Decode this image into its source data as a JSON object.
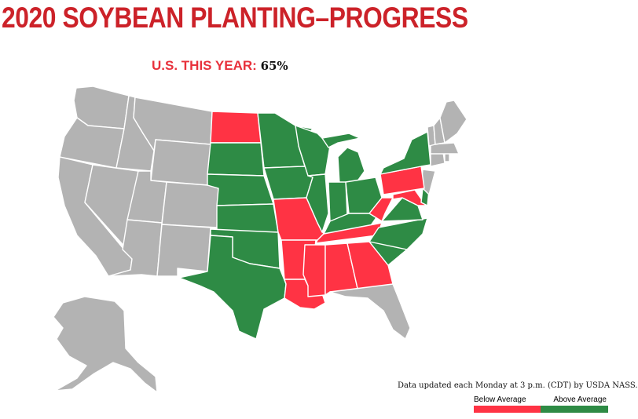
{
  "title": "2020 SOYBEAN PLANTING–PROGRESS",
  "subtitle": {
    "label": "U.S. THIS YEAR:",
    "value": "65%"
  },
  "note": "Data updated each Monday at 3 p.m. (CDT) by USDA NASS.",
  "legend": {
    "items": [
      {
        "label": "Below Average",
        "color": "#ff3344"
      },
      {
        "label": "Above Average",
        "color": "#2e8b45"
      }
    ]
  },
  "colors": {
    "title": "#cc2229",
    "subtitle_label": "#e8313c",
    "below": "#ff3344",
    "above": "#2e8b45",
    "no_data": "#b3b3b3"
  },
  "states": [
    {
      "code": "WA",
      "status": "none"
    },
    {
      "code": "OR",
      "status": "none"
    },
    {
      "code": "CA",
      "status": "none"
    },
    {
      "code": "ID",
      "status": "none"
    },
    {
      "code": "NV",
      "status": "none"
    },
    {
      "code": "MT",
      "status": "none"
    },
    {
      "code": "WY",
      "status": "none"
    },
    {
      "code": "UT",
      "status": "none"
    },
    {
      "code": "AZ",
      "status": "none"
    },
    {
      "code": "CO",
      "status": "none"
    },
    {
      "code": "NM",
      "status": "none"
    },
    {
      "code": "ND",
      "status": "below"
    },
    {
      "code": "SD",
      "status": "above"
    },
    {
      "code": "NE",
      "status": "above"
    },
    {
      "code": "KS",
      "status": "above"
    },
    {
      "code": "OK",
      "status": "above"
    },
    {
      "code": "TX",
      "status": "above"
    },
    {
      "code": "MN",
      "status": "above"
    },
    {
      "code": "IA",
      "status": "above"
    },
    {
      "code": "MO",
      "status": "below"
    },
    {
      "code": "AR",
      "status": "below"
    },
    {
      "code": "LA",
      "status": "below"
    },
    {
      "code": "WI",
      "status": "above"
    },
    {
      "code": "IL",
      "status": "above"
    },
    {
      "code": "MI",
      "status": "above"
    },
    {
      "code": "IN",
      "status": "above"
    },
    {
      "code": "OH",
      "status": "above"
    },
    {
      "code": "KY",
      "status": "above"
    },
    {
      "code": "TN",
      "status": "below"
    },
    {
      "code": "MS",
      "status": "below"
    },
    {
      "code": "AL",
      "status": "below"
    },
    {
      "code": "GA",
      "status": "below"
    },
    {
      "code": "FL",
      "status": "none"
    },
    {
      "code": "SC",
      "status": "above"
    },
    {
      "code": "NC",
      "status": "above"
    },
    {
      "code": "VA",
      "status": "above"
    },
    {
      "code": "WV",
      "status": "below"
    },
    {
      "code": "MD",
      "status": "below"
    },
    {
      "code": "DE",
      "status": "above"
    },
    {
      "code": "NJ",
      "status": "none"
    },
    {
      "code": "PA",
      "status": "below"
    },
    {
      "code": "NY",
      "status": "above"
    },
    {
      "code": "CT",
      "status": "none"
    },
    {
      "code": "RI",
      "status": "none"
    },
    {
      "code": "MA",
      "status": "none"
    },
    {
      "code": "VT",
      "status": "none"
    },
    {
      "code": "NH",
      "status": "none"
    },
    {
      "code": "ME",
      "status": "none"
    },
    {
      "code": "AK",
      "status": "none"
    }
  ]
}
